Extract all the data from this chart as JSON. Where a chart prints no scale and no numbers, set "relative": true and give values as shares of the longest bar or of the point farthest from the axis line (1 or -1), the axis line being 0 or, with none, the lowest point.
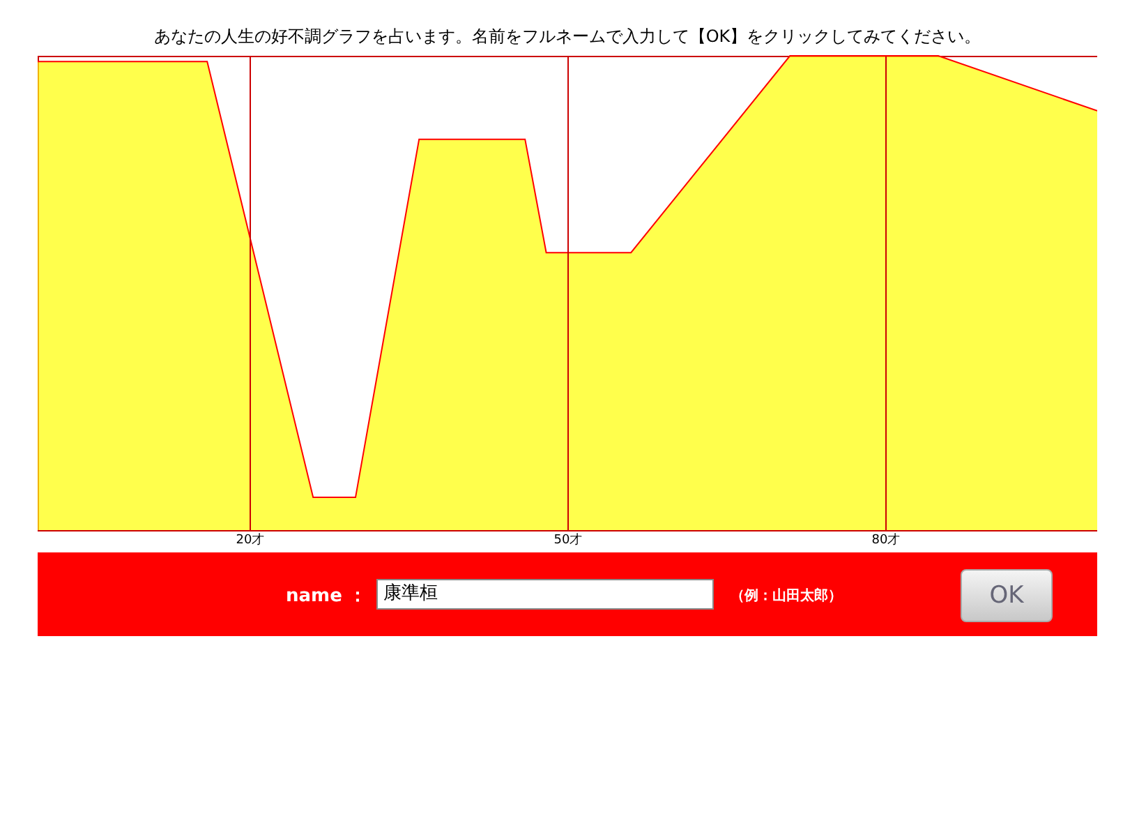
{
  "chart_data": {
    "type": "area",
    "title": "あなたの人生の好不調グラフを占います。名前をフルネームで入力して【OK】をクリックしてみてください。",
    "relative": true,
    "x": [
      0,
      16,
      26,
      30,
      36,
      46,
      48,
      56,
      71,
      85,
      100
    ],
    "series": [
      {
        "color": "#ffff00",
        "values": [
          0.988,
          0.988,
          0.069,
          0.069,
          0.824,
          0.824,
          0.585,
          0.585,
          1,
          1,
          0.884
        ]
      }
    ],
    "xlim": [
      0,
      100
    ],
    "xticks": [
      {
        "value": 20,
        "label": "20才"
      },
      {
        "value": 50,
        "label": "50才"
      },
      {
        "value": 80,
        "label": "80才"
      }
    ],
    "grid": "x",
    "annotations": [
      "name ：",
      "康準桓",
      "（例：山田太郎）",
      "OK"
    ]
  }
}
